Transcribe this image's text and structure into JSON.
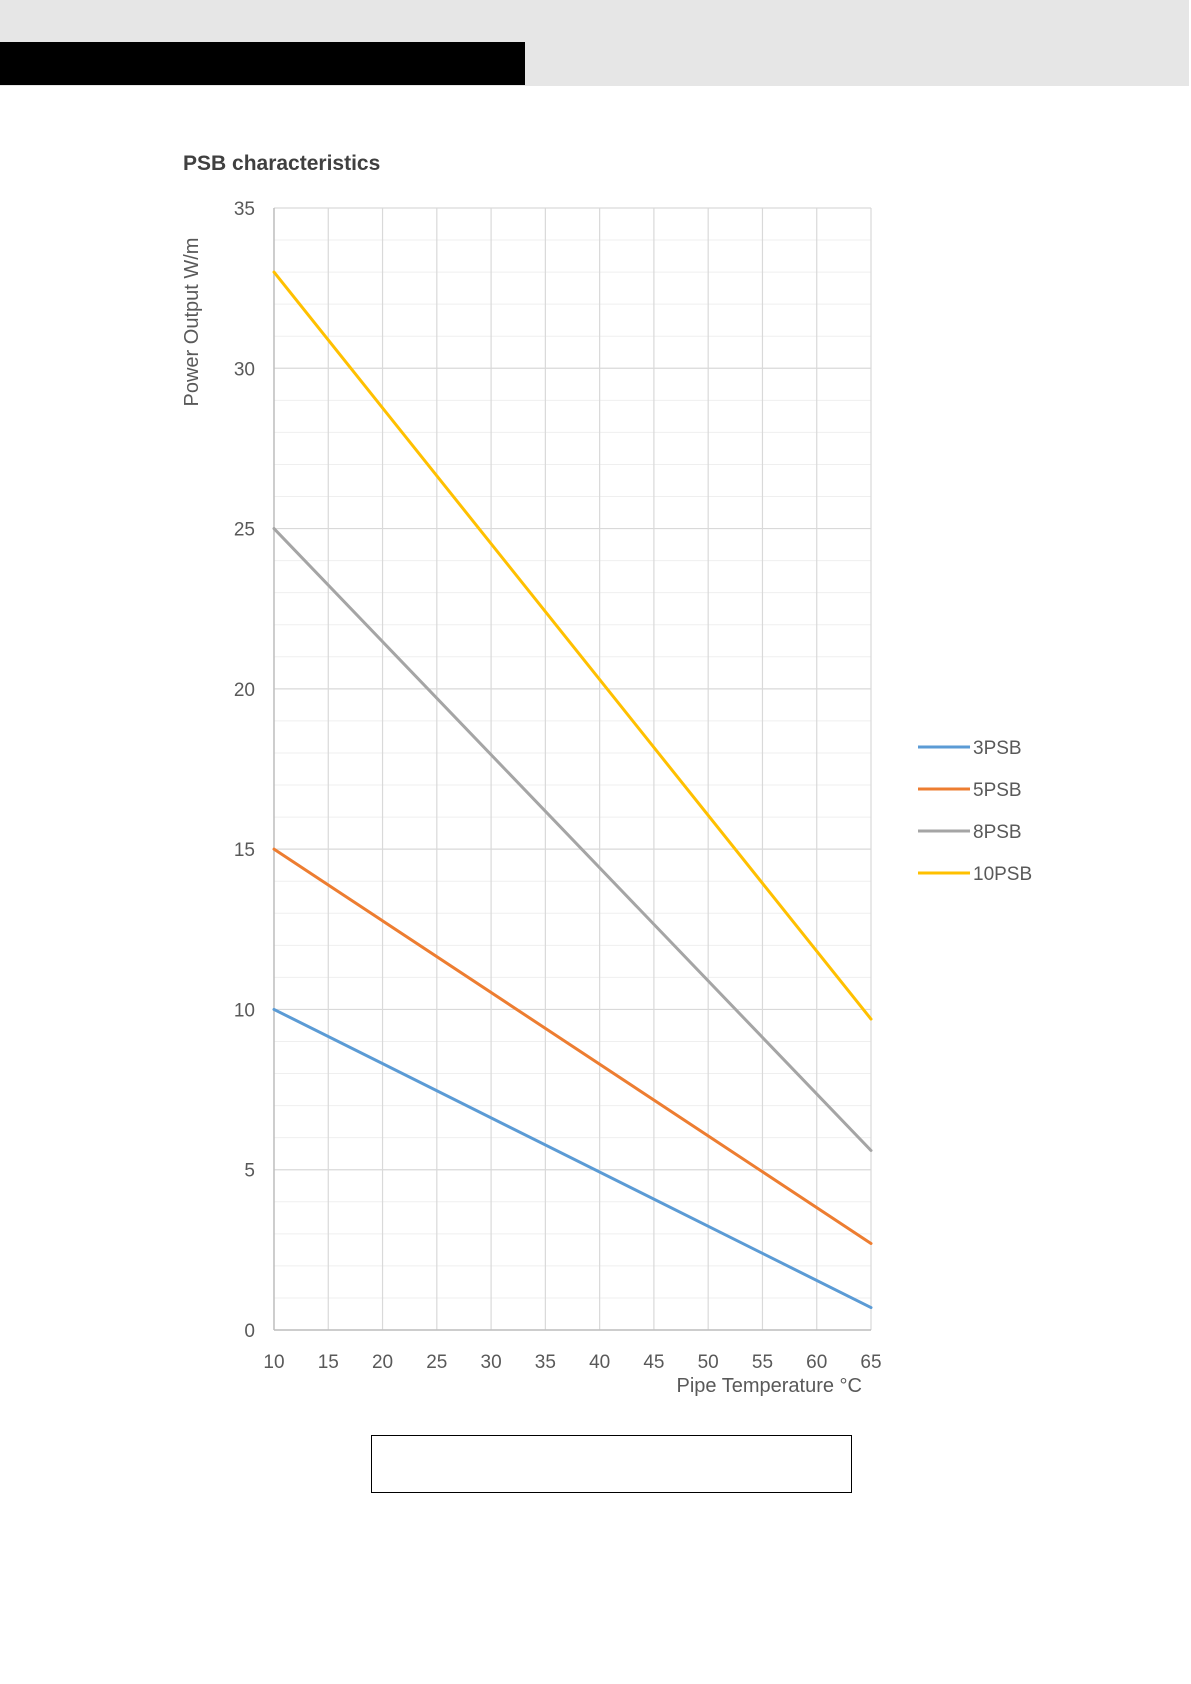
{
  "colors": {
    "header_band": "#e6e6e6",
    "header_block": "#000000",
    "grid_major": "#d9d9d9",
    "grid_minor": "#efefef",
    "axis_text": "#595959",
    "title_text": "#404040"
  },
  "chart_data": {
    "type": "line",
    "title": "PSB characteristics",
    "xlabel": "Pipe Temperature °C",
    "ylabel": "Power Output W/m",
    "xlim": [
      10,
      65
    ],
    "ylim": [
      0,
      35
    ],
    "x_ticks": [
      10,
      15,
      20,
      25,
      30,
      35,
      40,
      45,
      50,
      55,
      60,
      65
    ],
    "y_ticks": [
      0,
      5,
      10,
      15,
      20,
      25,
      30,
      35
    ],
    "grid": true,
    "legend_position": "right",
    "series": [
      {
        "name": "3PSB",
        "color": "#5b9bd5",
        "x": [
          10,
          65
        ],
        "y": [
          10,
          0.7
        ]
      },
      {
        "name": "5PSB",
        "color": "#ed7d31",
        "x": [
          10,
          65
        ],
        "y": [
          15,
          2.7
        ]
      },
      {
        "name": "8PSB",
        "color": "#a5a5a5",
        "x": [
          10,
          65
        ],
        "y": [
          25,
          5.6
        ]
      },
      {
        "name": "10PSB",
        "color": "#ffc000",
        "x": [
          10,
          65
        ],
        "y": [
          33,
          9.7
        ]
      }
    ]
  }
}
